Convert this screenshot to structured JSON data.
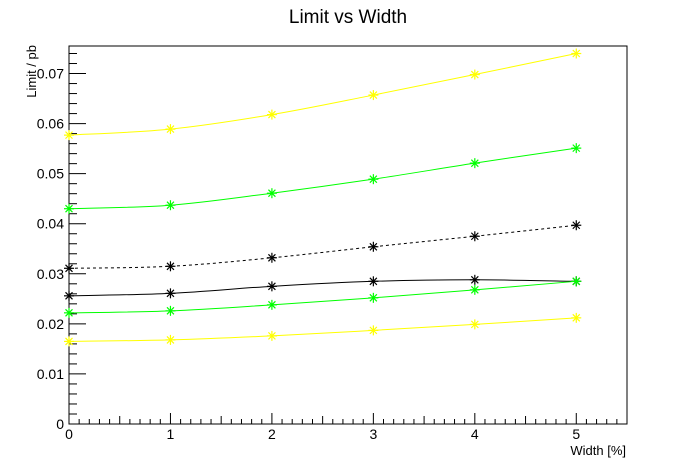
{
  "chart_data": {
    "type": "line",
    "title": "Limit vs Width",
    "xlabel": "Width [%]",
    "ylabel": "Limit / pb",
    "xlim": [
      0,
      5.5
    ],
    "ylim": [
      0,
      0.0755
    ],
    "x": [
      0,
      1,
      2,
      3,
      4,
      5
    ],
    "x_ticks": [
      "0",
      "1",
      "2",
      "3",
      "4",
      "5"
    ],
    "y_ticks": [
      "0",
      "0.01",
      "0.02",
      "0.03",
      "0.04",
      "0.05",
      "0.06",
      "0.07"
    ],
    "marker": "asterisk",
    "grid": false,
    "series": [
      {
        "color": "#ffff00",
        "line": "solid",
        "values": [
          0.0577,
          0.0589,
          0.0618,
          0.0657,
          0.0698,
          0.074
        ]
      },
      {
        "color": "#00ff00",
        "line": "solid",
        "values": [
          0.043,
          0.0437,
          0.0461,
          0.0489,
          0.0521,
          0.0551
        ]
      },
      {
        "color": "#000000",
        "line": "dashed",
        "values": [
          0.0311,
          0.0315,
          0.0332,
          0.0354,
          0.0375,
          0.0397
        ]
      },
      {
        "color": "#000000",
        "line": "solid",
        "values": [
          0.0256,
          0.0261,
          0.0275,
          0.0285,
          0.0288,
          0.0285
        ]
      },
      {
        "color": "#00ff00",
        "line": "solid",
        "values": [
          0.0222,
          0.0226,
          0.0238,
          0.0252,
          0.0268,
          0.0285
        ]
      },
      {
        "color": "#ffff00",
        "line": "solid",
        "values": [
          0.0165,
          0.0168,
          0.0176,
          0.0187,
          0.0199,
          0.0212
        ]
      }
    ]
  }
}
